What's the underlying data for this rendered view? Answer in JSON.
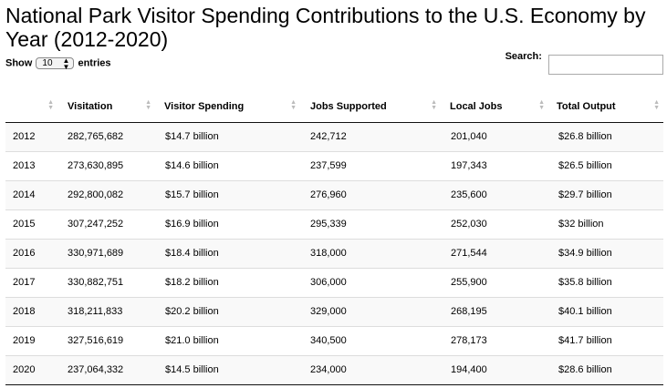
{
  "page_title": "National Park Visitor Spending Contributions to the U.S. Economy by Year (2012-2020)",
  "length_control": {
    "prefix": "Show",
    "selected": "10",
    "suffix": "entries"
  },
  "search": {
    "label": "Search:",
    "value": ""
  },
  "table": {
    "columns": [
      "",
      "Visitation",
      "Visitor Spending",
      "Jobs Supported",
      "Local Jobs",
      "Total Output"
    ],
    "rows": [
      [
        "2012",
        "282,765,682",
        "$14.7 billion",
        "242,712",
        "201,040",
        "$26.8 billion"
      ],
      [
        "2013",
        "273,630,895",
        "$14.6 billion",
        "237,599",
        "197,343",
        "$26.5 billion"
      ],
      [
        "2014",
        "292,800,082",
        "$15.7 billion",
        "276,960",
        "235,600",
        "$29.7 billion"
      ],
      [
        "2015",
        "307,247,252",
        "$16.9 billion",
        "295,339",
        "252,030",
        "$32 billion"
      ],
      [
        "2016",
        "330,971,689",
        "$18.4 billion",
        "318,000",
        "271,544",
        "$34.9 billion"
      ],
      [
        "2017",
        "330,882,751",
        "$18.2 billion",
        "306,000",
        "255,900",
        "$35.8 billion"
      ],
      [
        "2018",
        "318,211,833",
        "$20.2 billion",
        "329,000",
        "268,195",
        "$40.1 billion"
      ],
      [
        "2019",
        "327,516,619",
        "$21.0 billion",
        "340,500",
        "278,173",
        "$41.7 billion"
      ],
      [
        "2020",
        "237,064,332",
        "$14.5 billion",
        "234,000",
        "194,400",
        "$28.6 billion"
      ]
    ]
  }
}
